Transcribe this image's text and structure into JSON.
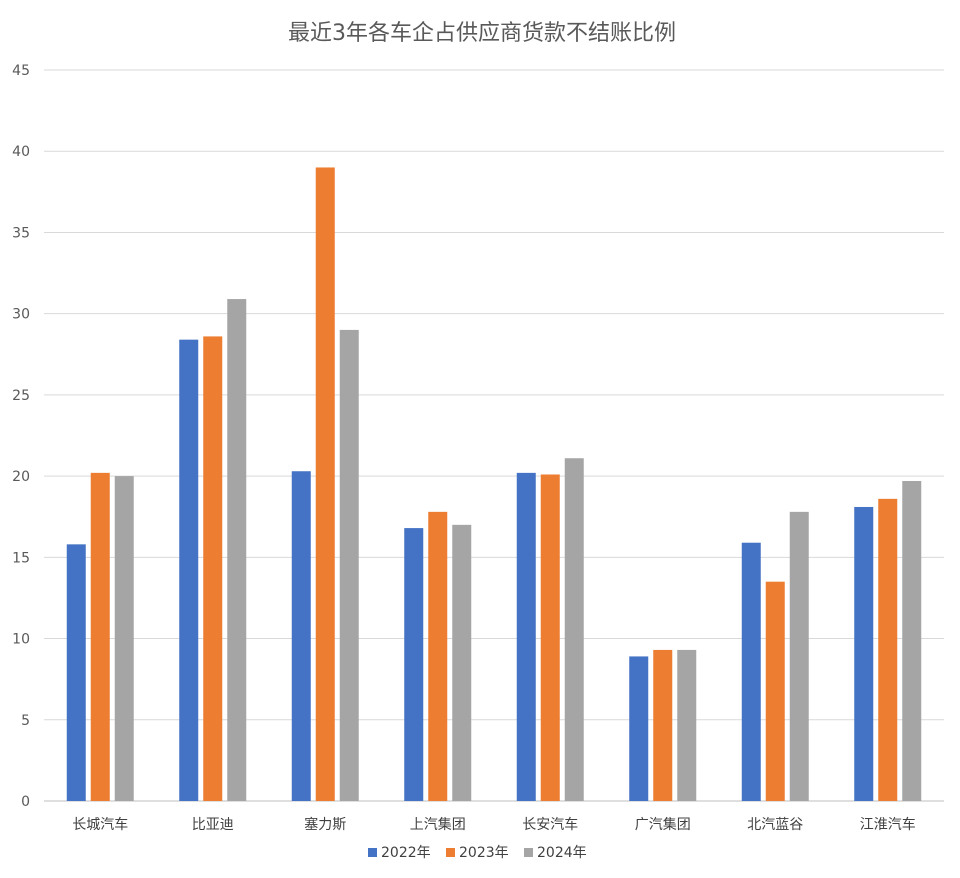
{
  "chart_data": {
    "type": "bar",
    "title": "最近3年各车企占供应商货款不结账比例",
    "xlabel": "",
    "ylabel": "",
    "ylim": [
      0,
      45
    ],
    "yticks": [
      0,
      5,
      10,
      15,
      20,
      25,
      30,
      35,
      40,
      45
    ],
    "grid": true,
    "legend_position": "bottom",
    "categories": [
      "长城汽车",
      "比亚迪",
      "塞力斯",
      "上汽集团",
      "长安汽车",
      "广汽集团",
      "北汽蓝谷",
      "江淮汽车"
    ],
    "series": [
      {
        "name": "2022年",
        "color": "#4472C4",
        "values": [
          15.8,
          28.4,
          20.3,
          16.8,
          20.2,
          8.9,
          15.9,
          18.1
        ]
      },
      {
        "name": "2023年",
        "color": "#ED7D31",
        "values": [
          20.2,
          28.6,
          39.0,
          17.8,
          20.1,
          9.3,
          13.5,
          18.6
        ]
      },
      {
        "name": "2024年",
        "color": "#A5A5A5",
        "values": [
          20.0,
          30.9,
          29.0,
          17.0,
          21.1,
          9.3,
          17.8,
          19.7
        ]
      }
    ]
  }
}
